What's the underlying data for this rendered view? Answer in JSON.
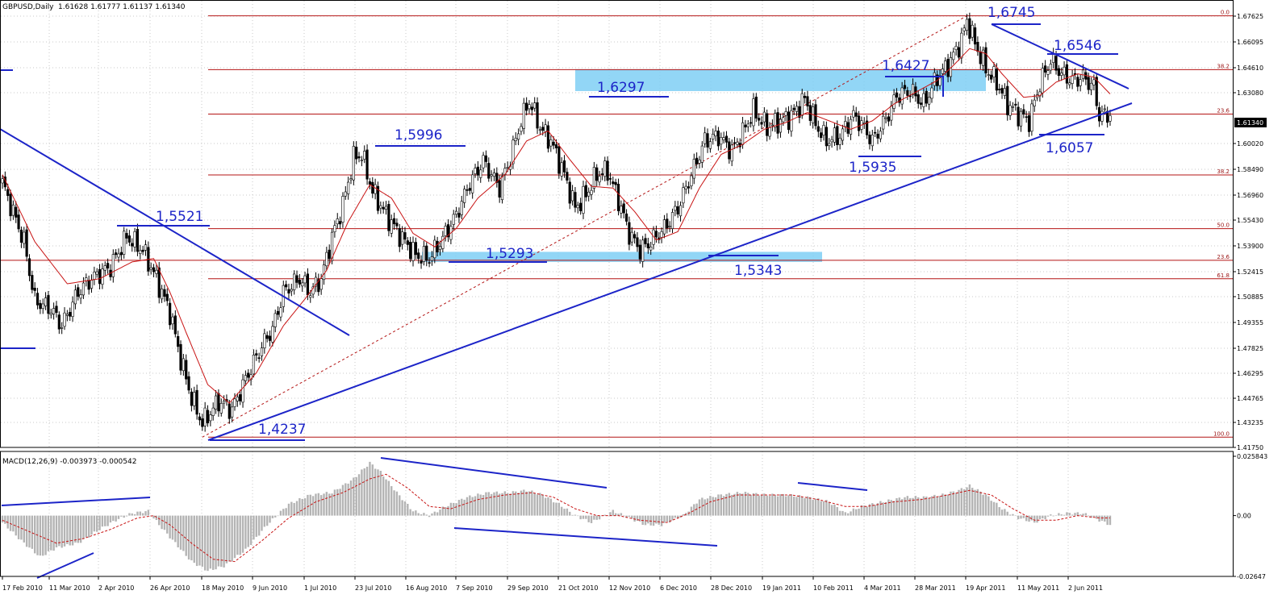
{
  "header": {
    "symbol": "GBPUSD,Daily",
    "ohlc": "1.61628 1.61777 1.61137 1.61340"
  },
  "colors": {
    "background": "#ffffff",
    "grid": "#c8c8c8",
    "bull_candle": "#ffffff",
    "bear_candle": "#000000",
    "moving_average": "#c81414",
    "fibonacci": "#b41414",
    "trendlines": "#1c24c8",
    "zones": "#7fcff5",
    "macd_histogram": "#b4b4b4",
    "macd_signal": "#c81414"
  },
  "chart_data": [
    {
      "type": "candlestick",
      "title": "GBPUSD,Daily",
      "ylim": [
        1.4176,
        1.6772
      ],
      "current_price": "1.61340",
      "y_ticks": [
        "1.67625",
        "1.66095",
        "1.64610",
        "1.63080",
        "1.61340",
        "1.60020",
        "1.58490",
        "1.56960",
        "1.55430",
        "1.53900",
        "1.52415",
        "1.50885",
        "1.49355",
        "1.47825",
        "1.46295",
        "1.44765",
        "1.43235",
        "1.41750"
      ],
      "x_ticks": [
        "17 Feb 2010",
        "11 Mar 2010",
        "2 Apr 2010",
        "26 Apr 2010",
        "18 May 2010",
        "9 Jun 2010",
        "1 Jul 2010",
        "23 Jul 2010",
        "16 Aug 2010",
        "7 Sep 2010",
        "29 Sep 2010",
        "21 Oct 2010",
        "12 Nov 2010",
        "6 Dec 2010",
        "28 Dec 2010",
        "19 Jan 2011",
        "10 Feb 2011",
        "4 Mar 2011",
        "28 Mar 2011",
        "19 Apr 2011",
        "11 May 2011",
        "2 Jun 2011"
      ],
      "close_path": [
        [
          0,
          1.575
        ],
        [
          8,
          1.54
        ],
        [
          12,
          1.505
        ],
        [
          18,
          1.5
        ],
        [
          22,
          1.49
        ],
        [
          28,
          1.51
        ],
        [
          33,
          1.518
        ],
        [
          40,
          1.525
        ],
        [
          46,
          1.543
        ],
        [
          52,
          1.535
        ],
        [
          57,
          1.518
        ],
        [
          62,
          1.498
        ],
        [
          66,
          1.47
        ],
        [
          70,
          1.447
        ],
        [
          74,
          1.432
        ],
        [
          80,
          1.445
        ],
        [
          85,
          1.44
        ],
        [
          90,
          1.458
        ],
        [
          96,
          1.478
        ],
        [
          100,
          1.488
        ],
        [
          104,
          1.51
        ],
        [
          110,
          1.518
        ],
        [
          114,
          1.51
        ],
        [
          118,
          1.518
        ],
        [
          122,
          1.543
        ],
        [
          126,
          1.562
        ],
        [
          130,
          1.59
        ],
        [
          133,
          1.592
        ],
        [
          137,
          1.57
        ],
        [
          142,
          1.556
        ],
        [
          148,
          1.542
        ],
        [
          153,
          1.532
        ],
        [
          158,
          1.53
        ],
        [
          163,
          1.542
        ],
        [
          168,
          1.556
        ],
        [
          173,
          1.575
        ],
        [
          178,
          1.588
        ],
        [
          184,
          1.572
        ],
        [
          188,
          1.59
        ],
        [
          192,
          1.612
        ],
        [
          195,
          1.624
        ],
        [
          199,
          1.608
        ],
        [
          203,
          1.6
        ],
        [
          208,
          1.58
        ],
        [
          212,
          1.56
        ],
        [
          216,
          1.568
        ],
        [
          220,
          1.58
        ],
        [
          224,
          1.582
        ],
        [
          228,
          1.565
        ],
        [
          232,
          1.545
        ],
        [
          236,
          1.535
        ],
        [
          240,
          1.54
        ],
        [
          245,
          1.548
        ],
        [
          250,
          1.56
        ],
        [
          255,
          1.58
        ],
        [
          260,
          1.6
        ],
        [
          265,
          1.603
        ],
        [
          270,
          1.594
        ],
        [
          274,
          1.605
        ],
        [
          278,
          1.618
        ],
        [
          283,
          1.608
        ],
        [
          288,
          1.612
        ],
        [
          292,
          1.615
        ],
        [
          297,
          1.625
        ],
        [
          301,
          1.61
        ],
        [
          305,
          1.6
        ],
        [
          310,
          1.603
        ],
        [
          315,
          1.615
        ],
        [
          318,
          1.61
        ],
        [
          322,
          1.6
        ],
        [
          327,
          1.613
        ],
        [
          331,
          1.627
        ],
        [
          336,
          1.63
        ],
        [
          341,
          1.622
        ],
        [
          346,
          1.638
        ],
        [
          350,
          1.645
        ],
        [
          355,
          1.66
        ],
        [
          357,
          1.672
        ],
        [
          360,
          1.658
        ],
        [
          364,
          1.643
        ],
        [
          368,
          1.635
        ],
        [
          372,
          1.622
        ],
        [
          376,
          1.616
        ],
        [
          380,
          1.612
        ],
        [
          384,
          1.634
        ],
        [
          388,
          1.648
        ],
        [
          392,
          1.64
        ],
        [
          396,
          1.636
        ],
        [
          400,
          1.638
        ],
        [
          404,
          1.632
        ],
        [
          406,
          1.615
        ],
        [
          410,
          1.616
        ]
      ],
      "moving_average": [
        [
          0,
          1.58
        ],
        [
          12,
          1.54
        ],
        [
          24,
          1.515
        ],
        [
          36,
          1.518
        ],
        [
          48,
          1.528
        ],
        [
          56,
          1.53
        ],
        [
          62,
          1.51
        ],
        [
          68,
          1.486
        ],
        [
          76,
          1.455
        ],
        [
          84,
          1.444
        ],
        [
          94,
          1.462
        ],
        [
          104,
          1.49
        ],
        [
          112,
          1.506
        ],
        [
          120,
          1.523
        ],
        [
          128,
          1.552
        ],
        [
          136,
          1.574
        ],
        [
          144,
          1.566
        ],
        [
          152,
          1.545
        ],
        [
          160,
          1.537
        ],
        [
          168,
          1.548
        ],
        [
          176,
          1.566
        ],
        [
          186,
          1.58
        ],
        [
          194,
          1.6
        ],
        [
          202,
          1.606
        ],
        [
          210,
          1.589
        ],
        [
          218,
          1.573
        ],
        [
          226,
          1.572
        ],
        [
          234,
          1.558
        ],
        [
          242,
          1.541
        ],
        [
          250,
          1.546
        ],
        [
          258,
          1.572
        ],
        [
          266,
          1.592
        ],
        [
          274,
          1.598
        ],
        [
          282,
          1.607
        ],
        [
          290,
          1.611
        ],
        [
          298,
          1.617
        ],
        [
          306,
          1.612
        ],
        [
          314,
          1.607
        ],
        [
          322,
          1.612
        ],
        [
          330,
          1.622
        ],
        [
          338,
          1.629
        ],
        [
          346,
          1.636
        ],
        [
          352,
          1.645
        ],
        [
          358,
          1.655
        ],
        [
          364,
          1.652
        ],
        [
          370,
          1.64
        ],
        [
          378,
          1.626
        ],
        [
          384,
          1.627
        ],
        [
          390,
          1.635
        ],
        [
          398,
          1.64
        ],
        [
          404,
          1.638
        ],
        [
          410,
          1.628
        ]
      ],
      "fibonacci": [
        {
          "label": "0.0",
          "value": 1.6745
        },
        {
          "label": "38.2",
          "value": 1.6425
        },
        {
          "label": "23.6",
          "value": 1.616
        },
        {
          "label": "38.2",
          "value": 1.5798
        },
        {
          "label": "50.0",
          "value": 1.5478
        },
        {
          "label": "23.6",
          "value": 1.529
        },
        {
          "label": "61.8",
          "value": 1.518
        },
        {
          "label": "100.0",
          "value": 1.4237
        }
      ],
      "annotations": [
        {
          "label": "1,5521",
          "value": 1.5521
        },
        {
          "label": "1,4237",
          "value": 1.4237
        },
        {
          "label": "1,5996",
          "value": 1.5996
        },
        {
          "label": "1,5293",
          "value": 1.5293
        },
        {
          "label": "1,6297",
          "value": 1.6297
        },
        {
          "label": "1,5343",
          "value": 1.5343
        },
        {
          "label": "1,5935",
          "value": 1.5935
        },
        {
          "label": "1,6427",
          "value": 1.6427
        },
        {
          "label": "1,6745",
          "value": 1.6745
        },
        {
          "label": "1,6546",
          "value": 1.6546
        },
        {
          "label": "1,6057",
          "value": 1.6057
        }
      ],
      "zones": [
        {
          "from": 1.6297,
          "to": 1.6427
        },
        {
          "from": 1.528,
          "to": 1.534
        }
      ]
    },
    {
      "type": "macd",
      "title": "MACD(12,26,9) -0.003973 -0.000542",
      "ylim": [
        -0.02647,
        0.02584
      ],
      "y_ticks": [
        "0.025843",
        "0.00",
        "-0.02647"
      ],
      "macd_path": [
        [
          0,
          -0.003
        ],
        [
          8,
          -0.012
        ],
        [
          14,
          -0.018
        ],
        [
          20,
          -0.014
        ],
        [
          28,
          -0.012
        ],
        [
          36,
          -0.006
        ],
        [
          42,
          -0.002
        ],
        [
          48,
          0.001
        ],
        [
          54,
          0.002
        ],
        [
          58,
          -0.004
        ],
        [
          64,
          -0.012
        ],
        [
          70,
          -0.02
        ],
        [
          76,
          -0.024
        ],
        [
          82,
          -0.022
        ],
        [
          90,
          -0.015
        ],
        [
          98,
          -0.004
        ],
        [
          106,
          0.005
        ],
        [
          114,
          0.009
        ],
        [
          122,
          0.01
        ],
        [
          130,
          0.016
        ],
        [
          136,
          0.023
        ],
        [
          140,
          0.019
        ],
        [
          146,
          0.01
        ],
        [
          152,
          0.002
        ],
        [
          158,
          0.0
        ],
        [
          164,
          0.004
        ],
        [
          172,
          0.008
        ],
        [
          180,
          0.01
        ],
        [
          188,
          0.01
        ],
        [
          194,
          0.011
        ],
        [
          200,
          0.009
        ],
        [
          206,
          0.005
        ],
        [
          212,
          0.0
        ],
        [
          218,
          -0.003
        ],
        [
          226,
          0.002
        ],
        [
          232,
          -0.001
        ],
        [
          238,
          -0.004
        ],
        [
          244,
          -0.004
        ],
        [
          252,
          0.0
        ],
        [
          258,
          0.007
        ],
        [
          266,
          0.009
        ],
        [
          274,
          0.01
        ],
        [
          282,
          0.009
        ],
        [
          290,
          0.009
        ],
        [
          298,
          0.008
        ],
        [
          306,
          0.006
        ],
        [
          312,
          0.001
        ],
        [
          318,
          0.004
        ],
        [
          326,
          0.006
        ],
        [
          334,
          0.008
        ],
        [
          342,
          0.008
        ],
        [
          348,
          0.009
        ],
        [
          354,
          0.011
        ],
        [
          358,
          0.013
        ],
        [
          364,
          0.009
        ],
        [
          370,
          0.003
        ],
        [
          376,
          -0.001
        ],
        [
          382,
          -0.003
        ],
        [
          388,
          0.0
        ],
        [
          394,
          0.001
        ],
        [
          400,
          0.001
        ],
        [
          406,
          -0.002
        ],
        [
          410,
          -0.004
        ]
      ],
      "signal_path": [
        [
          0,
          -0.002
        ],
        [
          10,
          -0.007
        ],
        [
          20,
          -0.012
        ],
        [
          30,
          -0.01
        ],
        [
          40,
          -0.006
        ],
        [
          50,
          -0.001
        ],
        [
          56,
          0.0
        ],
        [
          62,
          -0.004
        ],
        [
          70,
          -0.012
        ],
        [
          78,
          -0.019
        ],
        [
          86,
          -0.02
        ],
        [
          96,
          -0.011
        ],
        [
          106,
          -0.001
        ],
        [
          116,
          0.006
        ],
        [
          126,
          0.01
        ],
        [
          136,
          0.016
        ],
        [
          142,
          0.018
        ],
        [
          150,
          0.012
        ],
        [
          158,
          0.004
        ],
        [
          166,
          0.003
        ],
        [
          176,
          0.007
        ],
        [
          186,
          0.009
        ],
        [
          196,
          0.01
        ],
        [
          204,
          0.008
        ],
        [
          212,
          0.003
        ],
        [
          220,
          0.0
        ],
        [
          228,
          0.0
        ],
        [
          236,
          -0.002
        ],
        [
          246,
          -0.003
        ],
        [
          254,
          0.001
        ],
        [
          262,
          0.006
        ],
        [
          272,
          0.009
        ],
        [
          282,
          0.009
        ],
        [
          292,
          0.009
        ],
        [
          302,
          0.007
        ],
        [
          312,
          0.004
        ],
        [
          320,
          0.004
        ],
        [
          330,
          0.006
        ],
        [
          340,
          0.007
        ],
        [
          350,
          0.009
        ],
        [
          358,
          0.011
        ],
        [
          366,
          0.009
        ],
        [
          374,
          0.003
        ],
        [
          382,
          -0.002
        ],
        [
          390,
          -0.002
        ],
        [
          398,
          0.0
        ],
        [
          406,
          -0.001
        ],
        [
          410,
          -0.001
        ]
      ],
      "histogram": "per-bar MACD values as in macd_path"
    }
  ]
}
